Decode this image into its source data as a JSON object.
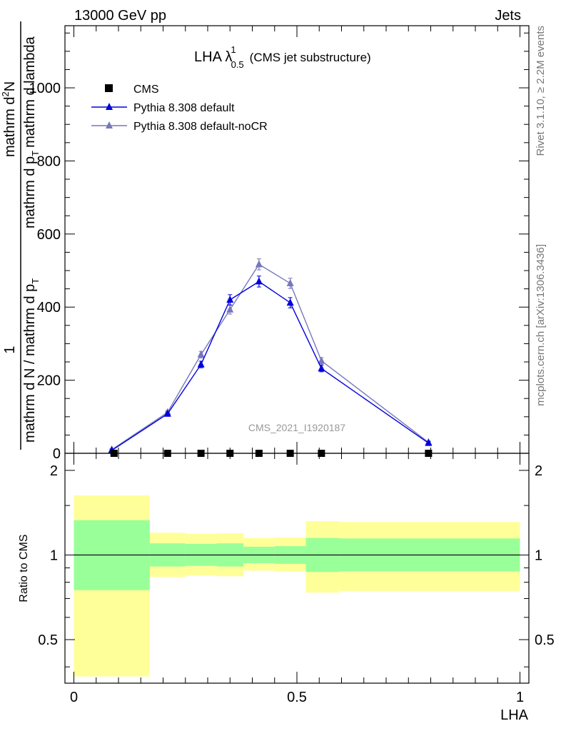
{
  "header": {
    "left": "13000 GeV pp",
    "right": "Jets"
  },
  "plot_title": {
    "main": "LHA λ",
    "superscript": "1",
    "subscript": "0.5",
    "suffix": "(CMS jet substructure)"
  },
  "side_text": {
    "rivet": "Rivet 3.1.10, ≥ 2.2M events",
    "mcplots": "mcplots.cern.ch [arXiv:1306.3436]"
  },
  "watermark": "CMS_2021_I1920187",
  "ylabel_main": {
    "numerator": "1",
    "denominator_top": "mathrm d N / mathrm d p",
    "denominator_sub": "T",
    "rhs_top": "mathrm d",
    "rhs_sup": "2",
    "rhs_top2": "N",
    "rhs_bottom": "mathrm d p",
    "rhs_bottom_sub": "T",
    "rhs_bottom2": "mathrm d lambda"
  },
  "ylabel_ratio": "Ratio to CMS",
  "xlabel": "LHA",
  "legend": [
    {
      "label": "CMS",
      "color": "#000000",
      "marker": "square"
    },
    {
      "label": "Pythia 8.308 default",
      "color": "#0000dd",
      "marker": "triangle"
    },
    {
      "label": "Pythia 8.308 default-noCR",
      "color": "#7777bb",
      "marker": "triangle"
    }
  ],
  "colors": {
    "band_outer": "#ffff99",
    "band_inner": "#99ff99",
    "cms": "#000000",
    "default": "#0000dd",
    "noCR": "#7777bb"
  },
  "chart_data": {
    "type": "line",
    "main": {
      "xlim": [
        -0.02,
        1.02
      ],
      "ylim": [
        0,
        1170
      ],
      "yticks": [
        0,
        200,
        400,
        600,
        800,
        1000
      ],
      "ytick_labels": [
        "0",
        "200",
        "400",
        "600",
        "800",
        "1000"
      ],
      "series": [
        {
          "name": "CMS",
          "x": [
            0.09,
            0.21,
            0.285,
            0.35,
            0.415,
            0.485,
            0.555,
            0.795
          ],
          "y": [
            0,
            0,
            0,
            0,
            0,
            0,
            0,
            0
          ]
        },
        {
          "name": "Pythia 8.308 default",
          "x": [
            0.085,
            0.21,
            0.285,
            0.35,
            0.415,
            0.485,
            0.555,
            0.795
          ],
          "y": [
            8,
            108,
            243,
            420,
            470,
            412,
            232,
            28
          ],
          "err": [
            3,
            5,
            9,
            14,
            15,
            14,
            9,
            4
          ]
        },
        {
          "name": "Pythia 8.308 default-noCR",
          "x": [
            0.085,
            0.21,
            0.285,
            0.35,
            0.415,
            0.485,
            0.555,
            0.795
          ],
          "y": [
            10,
            112,
            270,
            393,
            517,
            465,
            253,
            30
          ],
          "err": [
            3,
            5,
            9,
            12,
            15,
            14,
            9,
            4
          ]
        }
      ]
    },
    "ratio": {
      "ylim": [
        0.35,
        2.3
      ],
      "scale": "log",
      "yticks": [
        0.5,
        1,
        2
      ],
      "ytick_labels": [
        "0.5",
        "1",
        "2"
      ],
      "xticks": [
        0,
        0.5,
        1
      ],
      "xtick_labels": [
        "0",
        "0.5",
        "1"
      ],
      "bands": [
        {
          "x0": 0.0,
          "x1": 0.17,
          "outer_lo": 0.37,
          "outer_hi": 1.63,
          "inner_lo": 0.75,
          "inner_hi": 1.33
        },
        {
          "x0": 0.17,
          "x1": 0.25,
          "outer_lo": 0.835,
          "outer_hi": 1.2,
          "inner_lo": 0.91,
          "inner_hi": 1.1
        },
        {
          "x0": 0.25,
          "x1": 0.32,
          "outer_lo": 0.845,
          "outer_hi": 1.19,
          "inner_lo": 0.915,
          "inner_hi": 1.095
        },
        {
          "x0": 0.32,
          "x1": 0.38,
          "outer_lo": 0.84,
          "outer_hi": 1.195,
          "inner_lo": 0.91,
          "inner_hi": 1.1
        },
        {
          "x0": 0.38,
          "x1": 0.45,
          "outer_lo": 0.88,
          "outer_hi": 1.15,
          "inner_lo": 0.935,
          "inner_hi": 1.07
        },
        {
          "x0": 0.45,
          "x1": 0.52,
          "outer_lo": 0.875,
          "outer_hi": 1.155,
          "inner_lo": 0.93,
          "inner_hi": 1.075
        },
        {
          "x0": 0.52,
          "x1": 0.595,
          "outer_lo": 0.735,
          "outer_hi": 1.32,
          "inner_lo": 0.87,
          "inner_hi": 1.15
        },
        {
          "x0": 0.595,
          "x1": 1.0,
          "outer_lo": 0.745,
          "outer_hi": 1.31,
          "inner_lo": 0.875,
          "inner_hi": 1.145
        }
      ],
      "reference_line": 1
    }
  }
}
